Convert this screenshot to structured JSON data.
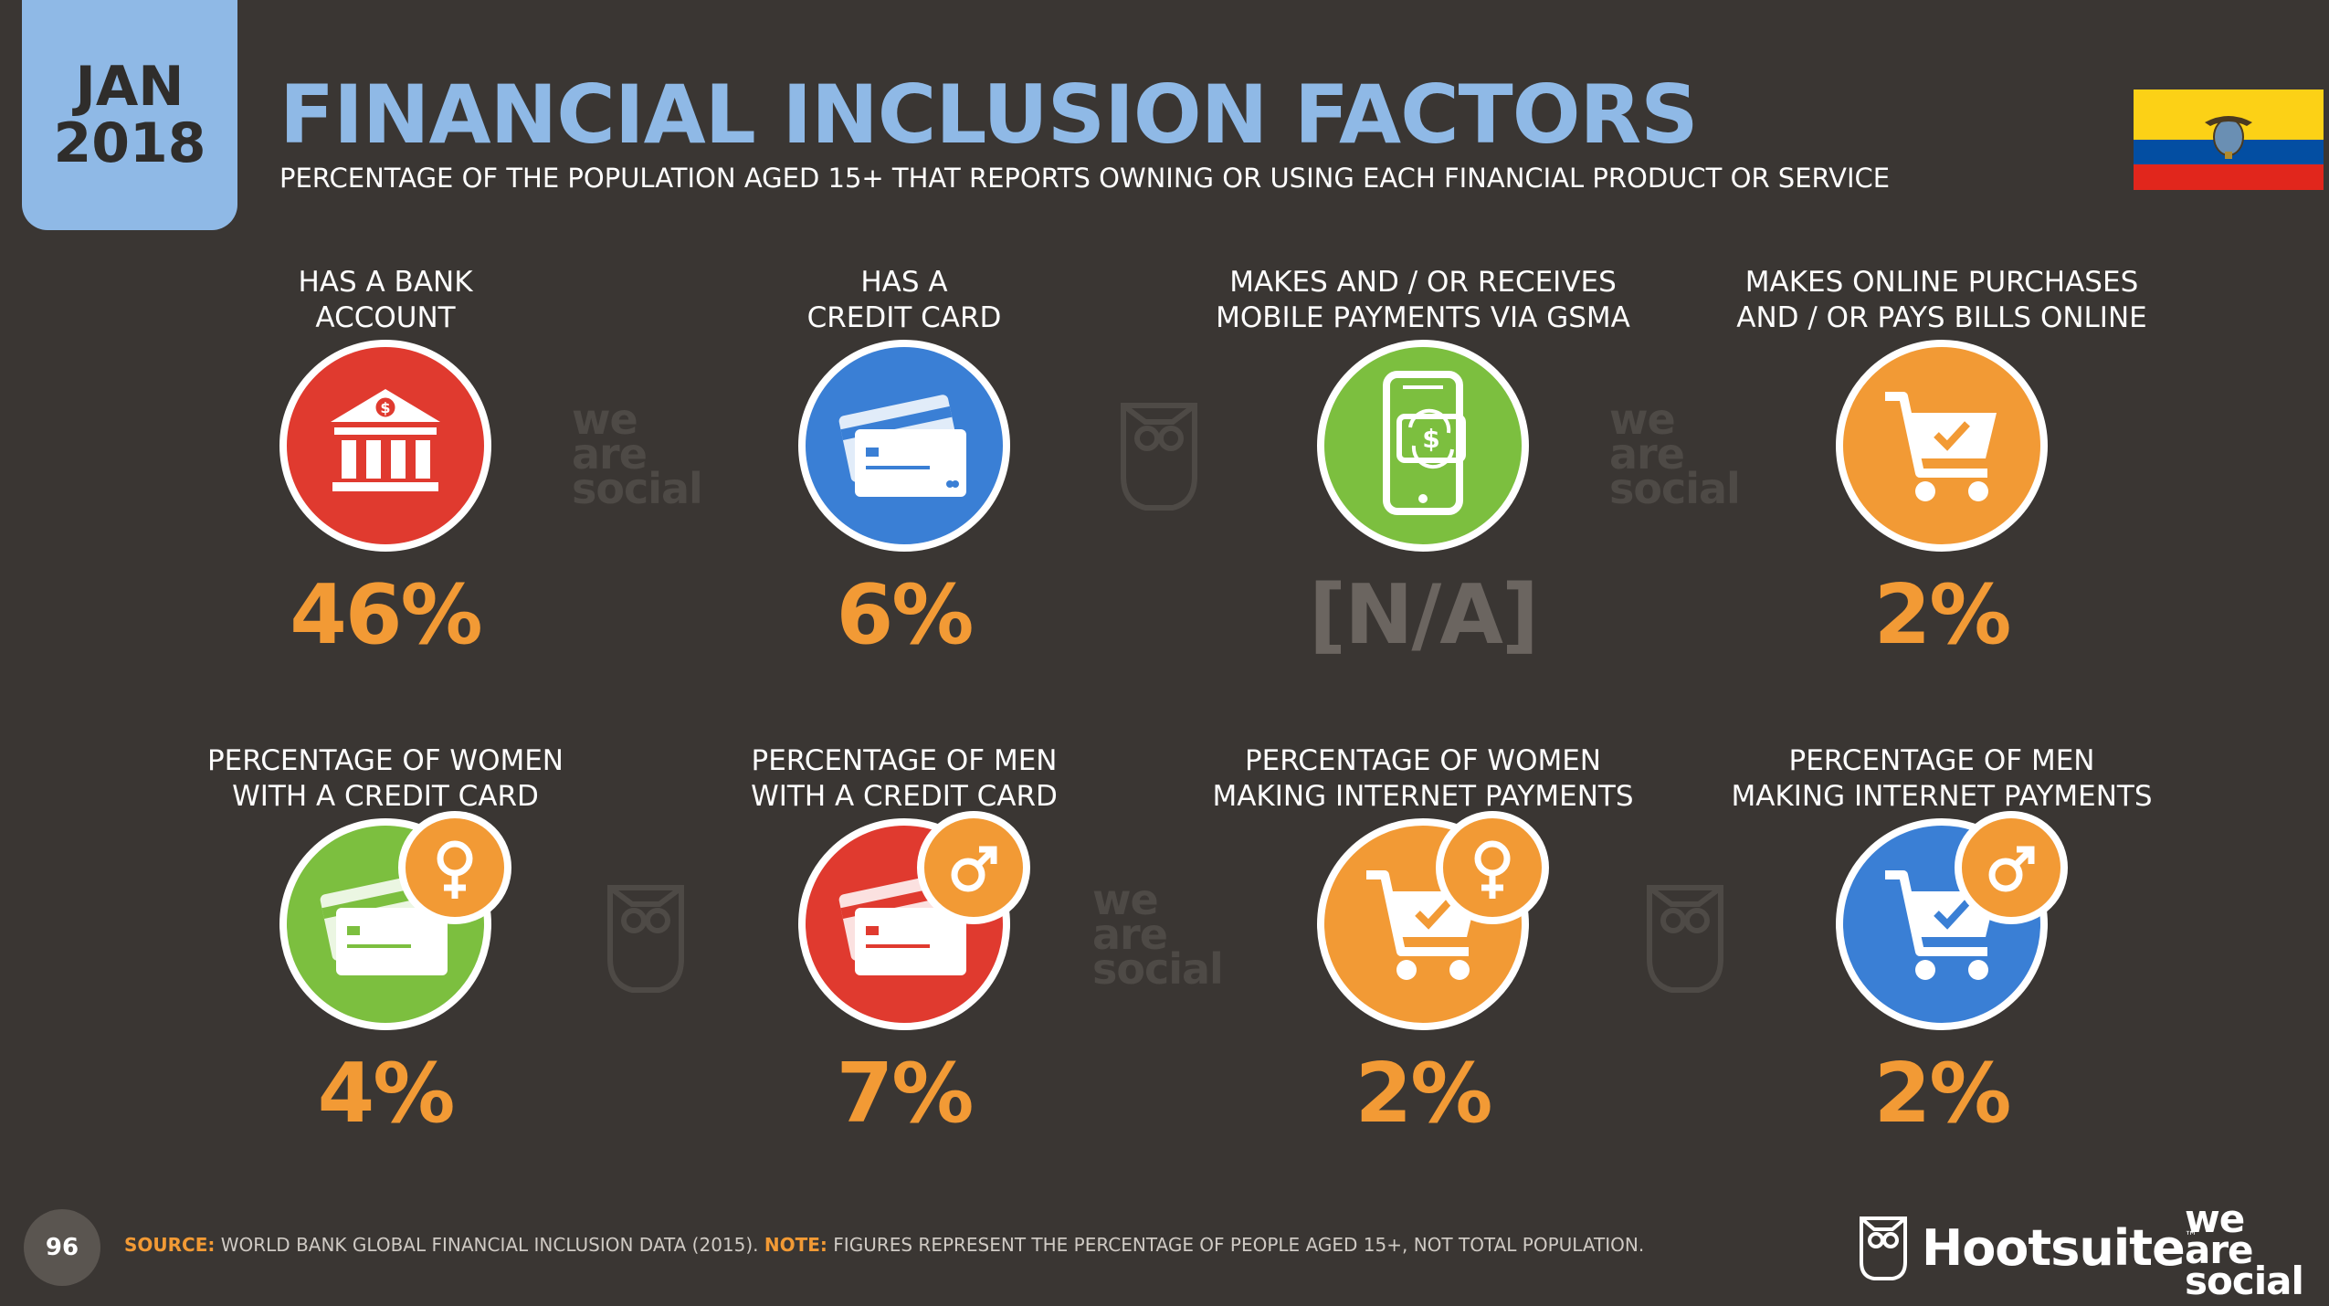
{
  "header": {
    "date_month": "JAN",
    "date_year": "2018",
    "title": "FINANCIAL INCLUSION FACTORS",
    "subtitle": "PERCENTAGE OF THE POPULATION AGED 15+ THAT REPORTS OWNING OR USING EACH FINANCIAL PRODUCT OR SERVICE"
  },
  "colors": {
    "background": "#3a3633",
    "accent_blue": "#8fb9e6",
    "red": "#e03a2f",
    "blue": "#3a7fd5",
    "green": "#7cbf3f",
    "orange": "#f29a35",
    "na_gray": "#6b6560"
  },
  "panels": [
    {
      "label_line1": "HAS A BANK",
      "label_line2": "ACCOUNT",
      "value": "46%",
      "icon": "bank-icon",
      "color": "#e03a2f",
      "value_color": "#f29a35"
    },
    {
      "label_line1": "HAS A",
      "label_line2": "CREDIT CARD",
      "value": "6%",
      "icon": "credit-card-icon",
      "color": "#3a7fd5",
      "value_color": "#f29a35"
    },
    {
      "label_line1": "MAKES AND / OR RECEIVES",
      "label_line2": "MOBILE PAYMENTS VIA GSMA",
      "value": "[N/A]",
      "icon": "mobile-payment-icon",
      "color": "#7cbf3f",
      "value_color": "#6b6560"
    },
    {
      "label_line1": "MAKES ONLINE PURCHASES",
      "label_line2": "AND / OR PAYS BILLS ONLINE",
      "value": "2%",
      "icon": "shopping-cart-icon",
      "color": "#f29a35",
      "value_color": "#f29a35"
    },
    {
      "label_line1": "PERCENTAGE OF WOMEN",
      "label_line2": "WITH A CREDIT CARD",
      "value": "4%",
      "icon": "credit-card-female-icon",
      "color": "#7cbf3f",
      "value_color": "#f29a35"
    },
    {
      "label_line1": "PERCENTAGE OF MEN",
      "label_line2": "WITH A CREDIT CARD",
      "value": "7%",
      "icon": "credit-card-male-icon",
      "color": "#e03a2f",
      "value_color": "#f29a35"
    },
    {
      "label_line1": "PERCENTAGE OF WOMEN",
      "label_line2": "MAKING INTERNET PAYMENTS",
      "value": "2%",
      "icon": "shopping-cart-female-icon",
      "color": "#f29a35",
      "value_color": "#f29a35"
    },
    {
      "label_line1": "PERCENTAGE OF MEN",
      "label_line2": "MAKING INTERNET PAYMENTS",
      "value": "2%",
      "icon": "shopping-cart-male-icon",
      "color": "#3a7fd5",
      "value_color": "#f29a35"
    }
  ],
  "watermark": {
    "line1": "we",
    "line2": "are",
    "line3": "social"
  },
  "footer": {
    "page_number": "96",
    "source_label": "SOURCE:",
    "source_text": " WORLD BANK GLOBAL FINANCIAL INCLUSION DATA (2015). ",
    "note_label": "NOTE:",
    "note_text": " FIGURES REPRESENT THE PERCENTAGE OF PEOPLE AGED 15+, NOT TOTAL POPULATION.",
    "brand_hootsuite": "Hootsuite",
    "brand_hootsuite_tm": "™",
    "brand_was_line1": "we",
    "brand_was_line2": "are",
    "brand_was_line3": "social"
  }
}
